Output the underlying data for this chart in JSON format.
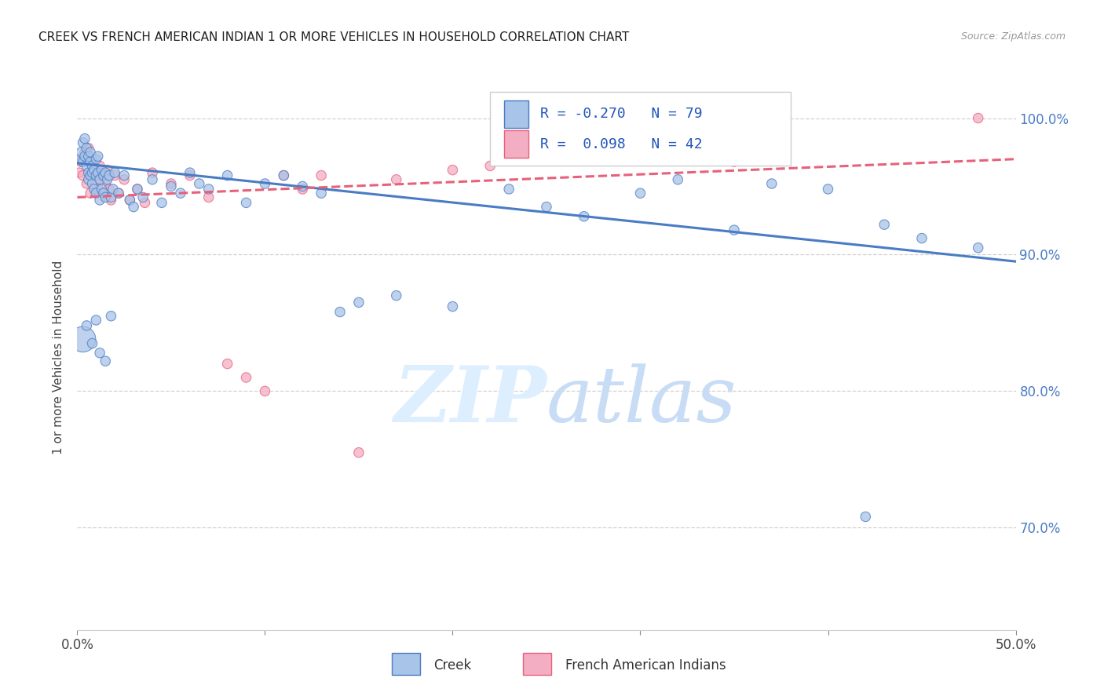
{
  "title": "CREEK VS FRENCH AMERICAN INDIAN 1 OR MORE VEHICLES IN HOUSEHOLD CORRELATION CHART",
  "source": "Source: ZipAtlas.com",
  "ylabel": "1 or more Vehicles in Household",
  "x_min": 0.0,
  "x_max": 0.5,
  "y_min": 0.625,
  "y_max": 1.025,
  "y_ticks": [
    0.7,
    0.8,
    0.9,
    1.0
  ],
  "y_tick_labels": [
    "70.0%",
    "80.0%",
    "90.0%",
    "100.0%"
  ],
  "legend_label1": "Creek",
  "legend_label2": "French American Indians",
  "R_creek": -0.27,
  "N_creek": 79,
  "R_fai": 0.098,
  "N_fai": 42,
  "color_creek": "#a8c4e8",
  "color_fai": "#f4aec4",
  "color_creek_line": "#4a7cc4",
  "color_fai_line": "#e8607a",
  "background_color": "#ffffff",
  "watermark_color": "#ddeeff",
  "creek_x": [
    0.001,
    0.002,
    0.003,
    0.003,
    0.004,
    0.004,
    0.005,
    0.005,
    0.006,
    0.006,
    0.006,
    0.007,
    0.007,
    0.007,
    0.008,
    0.008,
    0.008,
    0.009,
    0.009,
    0.01,
    0.01,
    0.01,
    0.011,
    0.011,
    0.012,
    0.012,
    0.013,
    0.013,
    0.014,
    0.014,
    0.015,
    0.015,
    0.016,
    0.017,
    0.018,
    0.019,
    0.02,
    0.022,
    0.025,
    0.028,
    0.03,
    0.032,
    0.035,
    0.04,
    0.045,
    0.05,
    0.055,
    0.06,
    0.065,
    0.07,
    0.08,
    0.09,
    0.1,
    0.11,
    0.12,
    0.13,
    0.14,
    0.15,
    0.17,
    0.2,
    0.23,
    0.25,
    0.27,
    0.3,
    0.32,
    0.35,
    0.37,
    0.4,
    0.43,
    0.45,
    0.48,
    0.003,
    0.005,
    0.008,
    0.01,
    0.012,
    0.015,
    0.018,
    0.42
  ],
  "creek_y": [
    0.97,
    0.975,
    0.968,
    0.982,
    0.972,
    0.985,
    0.978,
    0.965,
    0.96,
    0.972,
    0.955,
    0.968,
    0.975,
    0.958,
    0.965,
    0.96,
    0.952,
    0.962,
    0.948,
    0.97,
    0.958,
    0.945,
    0.972,
    0.96,
    0.955,
    0.94,
    0.962,
    0.948,
    0.958,
    0.945,
    0.96,
    0.942,
    0.955,
    0.958,
    0.942,
    0.948,
    0.96,
    0.945,
    0.958,
    0.94,
    0.935,
    0.948,
    0.942,
    0.955,
    0.938,
    0.95,
    0.945,
    0.96,
    0.952,
    0.948,
    0.958,
    0.938,
    0.952,
    0.958,
    0.95,
    0.945,
    0.858,
    0.865,
    0.87,
    0.862,
    0.948,
    0.935,
    0.928,
    0.945,
    0.955,
    0.918,
    0.952,
    0.948,
    0.922,
    0.912,
    0.905,
    0.838,
    0.848,
    0.835,
    0.852,
    0.828,
    0.822,
    0.855,
    0.708
  ],
  "creek_sizes": [
    80,
    80,
    80,
    80,
    80,
    80,
    80,
    80,
    80,
    80,
    80,
    80,
    80,
    80,
    80,
    80,
    80,
    80,
    80,
    80,
    80,
    80,
    80,
    80,
    80,
    80,
    80,
    80,
    80,
    80,
    80,
    80,
    80,
    80,
    80,
    80,
    80,
    80,
    80,
    80,
    80,
    80,
    80,
    80,
    80,
    80,
    80,
    80,
    80,
    80,
    80,
    80,
    80,
    80,
    80,
    80,
    80,
    80,
    80,
    80,
    80,
    80,
    80,
    80,
    80,
    80,
    80,
    80,
    80,
    80,
    80,
    550,
    80,
    80,
    80,
    80,
    80,
    80,
    80
  ],
  "fai_x": [
    0.001,
    0.002,
    0.003,
    0.004,
    0.005,
    0.006,
    0.006,
    0.007,
    0.008,
    0.008,
    0.009,
    0.01,
    0.011,
    0.012,
    0.013,
    0.014,
    0.015,
    0.016,
    0.017,
    0.018,
    0.02,
    0.022,
    0.025,
    0.028,
    0.032,
    0.036,
    0.04,
    0.05,
    0.06,
    0.07,
    0.08,
    0.09,
    0.1,
    0.11,
    0.12,
    0.13,
    0.15,
    0.17,
    0.2,
    0.22,
    0.35,
    0.48
  ],
  "fai_y": [
    0.96,
    0.968,
    0.958,
    0.975,
    0.952,
    0.968,
    0.978,
    0.945,
    0.958,
    0.97,
    0.962,
    0.955,
    0.948,
    0.965,
    0.958,
    0.945,
    0.952,
    0.962,
    0.948,
    0.94,
    0.958,
    0.945,
    0.955,
    0.94,
    0.948,
    0.938,
    0.96,
    0.952,
    0.958,
    0.942,
    0.82,
    0.81,
    0.8,
    0.958,
    0.948,
    0.958,
    0.755,
    0.955,
    0.962,
    0.965,
    0.968,
    1.0
  ],
  "fai_sizes": [
    80,
    80,
    80,
    80,
    80,
    80,
    80,
    80,
    80,
    80,
    80,
    80,
    80,
    80,
    80,
    80,
    80,
    80,
    80,
    80,
    80,
    80,
    80,
    80,
    80,
    80,
    80,
    80,
    80,
    80,
    80,
    80,
    80,
    80,
    80,
    80,
    80,
    80,
    80,
    80,
    80,
    80
  ],
  "creek_trend_x": [
    0.0,
    0.5
  ],
  "creek_trend_y": [
    0.967,
    0.895
  ],
  "fai_trend_x": [
    0.0,
    0.5
  ],
  "fai_trend_y": [
    0.942,
    0.97
  ]
}
